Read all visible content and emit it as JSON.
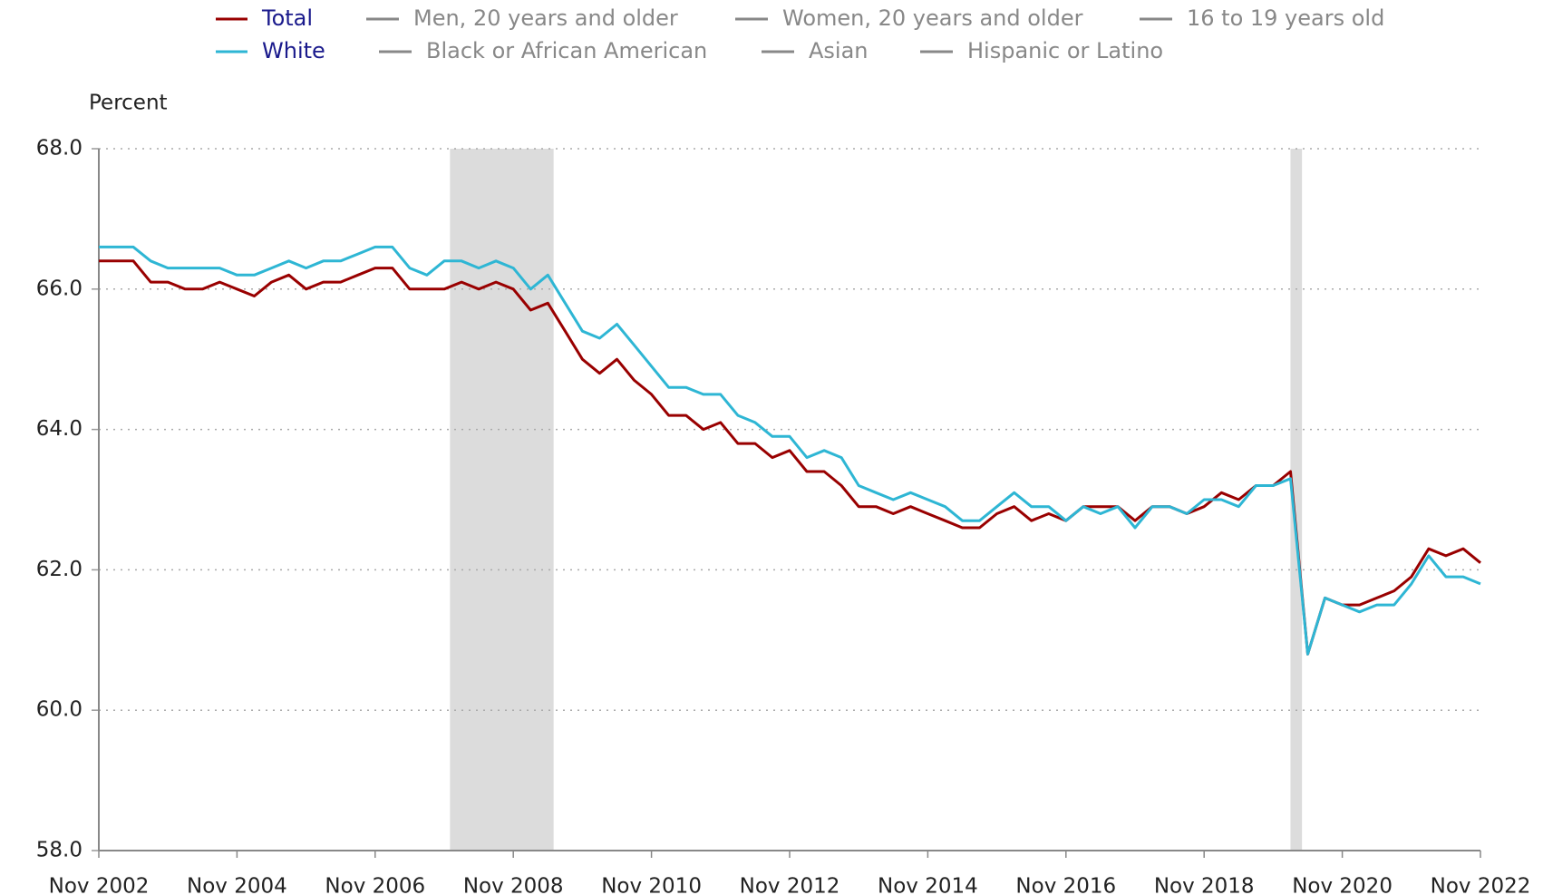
{
  "chart_data": {
    "type": "line",
    "y_axis_label": "Percent",
    "x": [
      "2002-11",
      "2003-02",
      "2003-05",
      "2003-08",
      "2003-11",
      "2004-02",
      "2004-05",
      "2004-08",
      "2004-11",
      "2005-02",
      "2005-05",
      "2005-08",
      "2005-11",
      "2006-02",
      "2006-05",
      "2006-08",
      "2006-11",
      "2007-02",
      "2007-05",
      "2007-08",
      "2007-11",
      "2008-02",
      "2008-05",
      "2008-08",
      "2008-11",
      "2009-02",
      "2009-05",
      "2009-08",
      "2009-11",
      "2010-02",
      "2010-05",
      "2010-08",
      "2010-11",
      "2011-02",
      "2011-05",
      "2011-08",
      "2011-11",
      "2012-02",
      "2012-05",
      "2012-08",
      "2012-11",
      "2013-02",
      "2013-05",
      "2013-08",
      "2013-11",
      "2014-02",
      "2014-05",
      "2014-08",
      "2014-11",
      "2015-02",
      "2015-05",
      "2015-08",
      "2015-11",
      "2016-02",
      "2016-05",
      "2016-08",
      "2016-11",
      "2017-02",
      "2017-05",
      "2017-08",
      "2017-11",
      "2018-02",
      "2018-05",
      "2018-08",
      "2018-11",
      "2019-02",
      "2019-05",
      "2019-08",
      "2019-11",
      "2020-02",
      "2020-05",
      "2020-08",
      "2020-11",
      "2021-02",
      "2021-05",
      "2021-08",
      "2021-11",
      "2022-02",
      "2022-05",
      "2022-08",
      "2022-11"
    ],
    "series": [
      {
        "name": "Total",
        "color": "#990000",
        "values": [
          66.4,
          66.4,
          66.4,
          66.1,
          66.1,
          66.0,
          66.0,
          66.1,
          66.0,
          65.9,
          66.1,
          66.2,
          66.0,
          66.1,
          66.1,
          66.2,
          66.3,
          66.3,
          66.0,
          66.0,
          66.0,
          66.1,
          66.0,
          66.1,
          66.0,
          65.7,
          65.8,
          65.4,
          65.0,
          64.8,
          65.0,
          64.7,
          64.5,
          64.2,
          64.2,
          64.0,
          64.1,
          63.8,
          63.8,
          63.6,
          63.7,
          63.4,
          63.4,
          63.2,
          62.9,
          62.9,
          62.8,
          62.9,
          62.8,
          62.7,
          62.6,
          62.6,
          62.8,
          62.9,
          62.7,
          62.8,
          62.7,
          62.9,
          62.9,
          62.9,
          62.7,
          62.9,
          62.9,
          62.8,
          62.9,
          63.1,
          63.0,
          63.2,
          63.2,
          63.4,
          60.8,
          61.6,
          61.5,
          61.5,
          61.6,
          61.7,
          61.9,
          62.3,
          62.2,
          62.3,
          62.1
        ]
      },
      {
        "name": "White",
        "color": "#2eb6d4",
        "values": [
          66.6,
          66.6,
          66.6,
          66.4,
          66.3,
          66.3,
          66.3,
          66.3,
          66.2,
          66.2,
          66.3,
          66.4,
          66.3,
          66.4,
          66.4,
          66.5,
          66.6,
          66.6,
          66.3,
          66.2,
          66.4,
          66.4,
          66.3,
          66.4,
          66.3,
          66.0,
          66.2,
          65.8,
          65.4,
          65.3,
          65.5,
          65.2,
          64.9,
          64.6,
          64.6,
          64.5,
          64.5,
          64.2,
          64.1,
          63.9,
          63.9,
          63.6,
          63.7,
          63.6,
          63.2,
          63.1,
          63.0,
          63.1,
          63.0,
          62.9,
          62.7,
          62.7,
          62.9,
          63.1,
          62.9,
          62.9,
          62.7,
          62.9,
          62.8,
          62.9,
          62.6,
          62.9,
          62.9,
          62.8,
          63.0,
          63.0,
          62.9,
          63.2,
          63.2,
          63.3,
          60.8,
          61.6,
          61.5,
          61.4,
          61.5,
          61.5,
          61.8,
          62.2,
          61.9,
          61.9,
          61.8
        ]
      }
    ],
    "hidden_series": [
      "Men, 20 years and older",
      "Women, 20 years and older",
      "16 to 19 years old",
      "Black or African American",
      "Asian",
      "Hispanic or Latino"
    ],
    "hidden_color": "#888888",
    "legend_text_color": "#1a1a8c",
    "recessions": [
      [
        "2007-12",
        "2009-06"
      ],
      [
        "2020-02",
        "2020-04"
      ]
    ],
    "recession_color": "#dcdcdc",
    "xlim": [
      "2002-11",
      "2022-11"
    ],
    "xticks": [
      {
        "value": "2002-11",
        "label": "Nov 2002"
      },
      {
        "value": "2004-11",
        "label": "Nov 2004"
      },
      {
        "value": "2006-11",
        "label": "Nov 2006"
      },
      {
        "value": "2008-11",
        "label": "Nov 2008"
      },
      {
        "value": "2010-11",
        "label": "Nov 2010"
      },
      {
        "value": "2012-11",
        "label": "Nov 2012"
      },
      {
        "value": "2014-11",
        "label": "Nov 2014"
      },
      {
        "value": "2016-11",
        "label": "Nov 2016"
      },
      {
        "value": "2018-11",
        "label": "Nov 2018"
      },
      {
        "value": "2020-11",
        "label": "Nov 2020"
      },
      {
        "value": "2022-11",
        "label": "Nov 2022"
      }
    ],
    "ylim": [
      58,
      68
    ],
    "yticks": [
      {
        "value": 58,
        "label": "58.0"
      },
      {
        "value": 60,
        "label": "60.0"
      },
      {
        "value": 62,
        "label": "62.0"
      },
      {
        "value": 64,
        "label": "64.0"
      },
      {
        "value": 66,
        "label": "66.0"
      },
      {
        "value": 68,
        "label": "68.0"
      }
    ],
    "grid": true
  }
}
